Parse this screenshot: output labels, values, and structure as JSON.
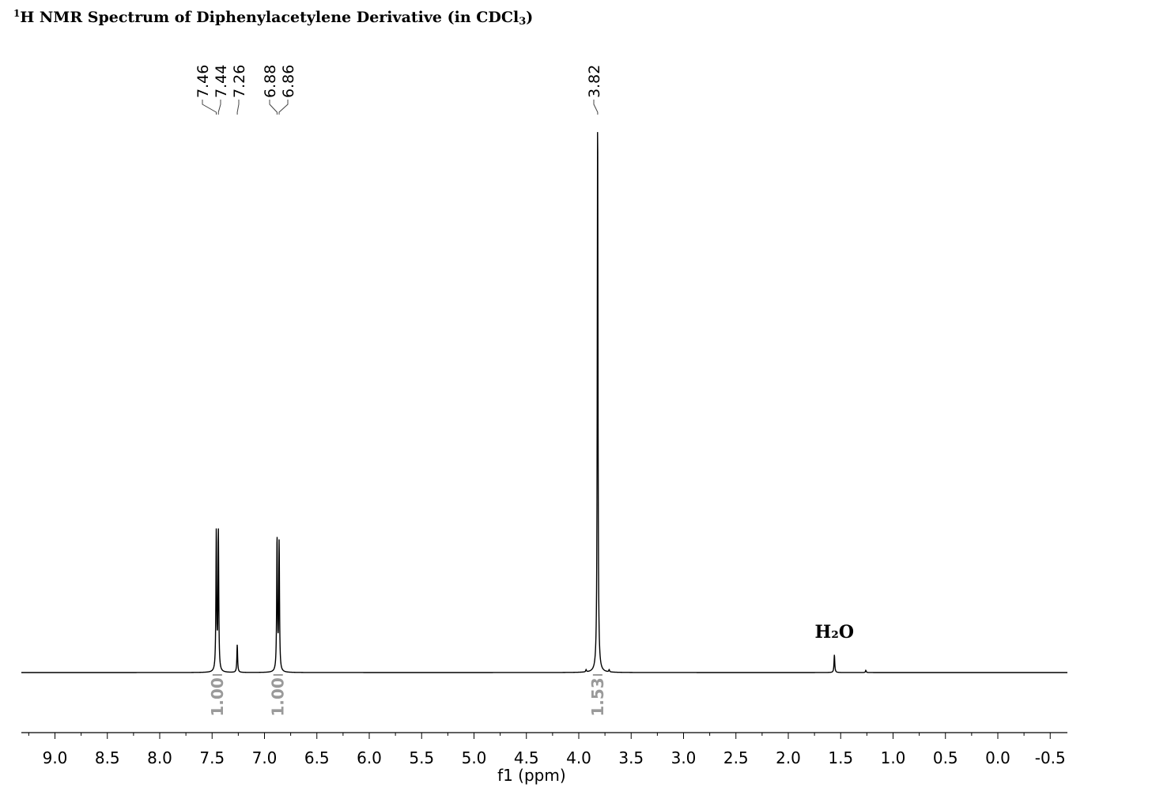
{
  "title": {
    "sup": "1",
    "main": "H NMR Spectrum of Diphenylacetylene Derivative (in CDCl",
    "sub": "3",
    "end": ")"
  },
  "chart_data": {
    "type": "line",
    "title": "1H NMR Spectrum of Diphenylacetylene Derivative (in CDCl3)",
    "xlabel": "f1 (ppm)",
    "ylabel": "",
    "x_reversed": true,
    "xlim": [
      9.25,
      -0.75
    ],
    "x_ticks": [
      9.0,
      8.5,
      8.0,
      7.5,
      7.0,
      6.5,
      6.0,
      5.5,
      5.0,
      4.5,
      4.0,
      3.5,
      3.0,
      2.5,
      2.0,
      1.5,
      1.0,
      0.5,
      0.0,
      -0.5
    ],
    "x_tick_labels": [
      "9.0",
      "8.5",
      "8.0",
      "7.5",
      "7.0",
      "6.5",
      "6.0",
      "5.5",
      "5.0",
      "4.5",
      "4.0",
      "3.5",
      "3.0",
      "2.5",
      "2.0",
      "1.5",
      "1.0",
      "0.5",
      "0.0",
      "-0.5"
    ],
    "grid": false,
    "peaks": [
      {
        "ppm": 7.46,
        "intensity": 0.25
      },
      {
        "ppm": 7.44,
        "intensity": 0.25
      },
      {
        "ppm": 7.26,
        "intensity": 0.05
      },
      {
        "ppm": 6.88,
        "intensity": 0.24
      },
      {
        "ppm": 6.86,
        "intensity": 0.23
      },
      {
        "ppm": 3.82,
        "intensity": 1.0
      },
      {
        "ppm": 1.56,
        "intensity": 0.032
      },
      {
        "ppm": 1.26,
        "intensity": 0.004
      },
      {
        "ppm": 3.93,
        "intensity": 0.004
      },
      {
        "ppm": 3.71,
        "intensity": 0.004
      }
    ],
    "peak_labels": [
      "7.46",
      "7.44",
      "7.26",
      "6.88",
      "6.86",
      "3.82"
    ],
    "integrals": [
      {
        "ppm": 7.45,
        "value": "1.00"
      },
      {
        "ppm": 6.87,
        "value": "1.00"
      },
      {
        "ppm": 3.82,
        "value": "1.53"
      }
    ],
    "annotations": [
      {
        "ppm": 1.56,
        "text": "H₂O"
      }
    ]
  }
}
